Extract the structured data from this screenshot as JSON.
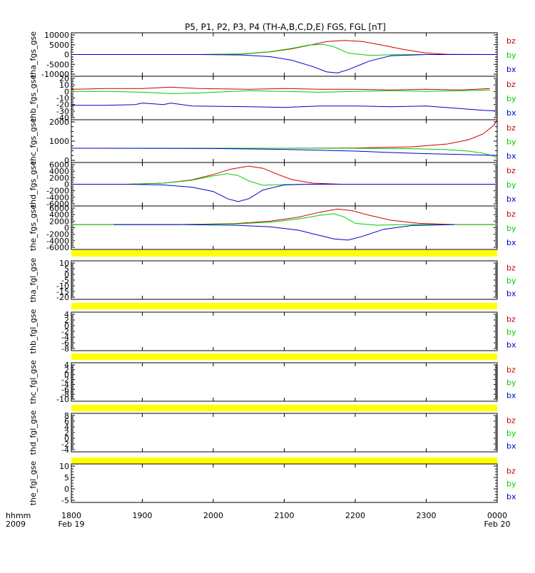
{
  "title": "P5, P1, P2, P3, P4 (TH-A,B,C,D,E) FGS, FGL [nT]",
  "time_axis": {
    "label_top": "hhmm",
    "label_bottom": "2009",
    "ticks": [
      "1800",
      "1900",
      "2000",
      "2100",
      "2200",
      "2300",
      "0000"
    ],
    "dates": [
      {
        "at": "1800",
        "text": "Feb 19"
      },
      {
        "at": "0000",
        "text": "Feb 20"
      }
    ],
    "range_hours": [
      18,
      24
    ]
  },
  "components": [
    {
      "name": "bz",
      "color": "#cc0000"
    },
    {
      "name": "by",
      "color": "#00cc00"
    },
    {
      "name": "bx",
      "color": "#0000cc"
    }
  ],
  "fill_color": "#ffff00",
  "chart_data": [
    {
      "type": "line",
      "ylabel": "tha_fgs_gse",
      "ylim": [
        -10000,
        10000
      ],
      "yticks": [
        "10000",
        "5000",
        "0",
        "-5000",
        "-10000"
      ],
      "series": [
        {
          "name": "bz",
          "x": [
            18.0,
            19.8,
            20.4,
            20.8,
            21.1,
            21.4,
            21.6,
            21.85,
            22.1,
            22.4,
            22.7,
            23.0,
            23.3,
            24.0
          ],
          "y": [
            0,
            0,
            200,
            1200,
            2600,
            4600,
            6000,
            6500,
            6000,
            4200,
            2200,
            700,
            100,
            0
          ]
        },
        {
          "name": "by",
          "x": [
            18.0,
            19.8,
            20.4,
            20.8,
            21.1,
            21.35,
            21.55,
            21.7,
            21.9,
            22.2,
            22.5,
            23.0,
            24.0
          ],
          "y": [
            0,
            0,
            300,
            1300,
            2800,
            4400,
            4700,
            3600,
            700,
            -400,
            -100,
            0,
            0
          ]
        },
        {
          "name": "bx",
          "x": [
            18.0,
            19.8,
            20.4,
            20.8,
            21.1,
            21.4,
            21.6,
            21.75,
            21.9,
            22.2,
            22.5,
            23.0,
            24.0
          ],
          "y": [
            0,
            0,
            -200,
            -1000,
            -2600,
            -5500,
            -8000,
            -8500,
            -7000,
            -3000,
            -600,
            0,
            0
          ]
        }
      ]
    },
    {
      "type": "line",
      "ylabel": "thb_fgs_gse",
      "ylim": [
        -40,
        20
      ],
      "yticks": [
        "20",
        "10",
        "0",
        "-10",
        "-20",
        "-30",
        "-40"
      ],
      "series": [
        {
          "name": "bz",
          "x": [
            18.0,
            18.5,
            19.0,
            19.4,
            19.8,
            20.5,
            21.0,
            21.5,
            22.0,
            22.5,
            23.0,
            23.5,
            23.9
          ],
          "y": [
            2,
            3,
            3,
            5,
            3,
            2,
            3,
            2,
            2,
            1,
            2,
            1,
            3
          ]
        },
        {
          "name": "by",
          "x": [
            18.0,
            18.5,
            19.0,
            19.4,
            19.8,
            20.5,
            21.0,
            21.5,
            22.0,
            22.5,
            23.0,
            23.5,
            23.9
          ],
          "y": [
            -1,
            -1,
            -2,
            -4,
            -3,
            0,
            -1,
            -2,
            -1,
            0,
            -1,
            0,
            1
          ]
        },
        {
          "name": "bx",
          "x": [
            18.0,
            18.5,
            18.9,
            19.0,
            19.3,
            19.4,
            19.7,
            20.5,
            21.0,
            21.5,
            22.0,
            22.5,
            23.0,
            23.4,
            23.8,
            24.0
          ],
          "y": [
            -20,
            -20,
            -19,
            -17,
            -19,
            -17,
            -21,
            -22,
            -23,
            -21,
            -21,
            -22,
            -21,
            -24,
            -27,
            -28
          ]
        }
      ]
    },
    {
      "type": "line",
      "ylabel": "thc_fgs_gse",
      "ylim": [
        -1000,
        2000
      ],
      "yticks": [
        "2000",
        "1000",
        "0"
      ],
      "series": [
        {
          "name": "bz",
          "x": [
            18.0,
            21.0,
            22.0,
            22.8,
            23.3,
            23.6,
            23.8,
            23.95,
            24.0
          ],
          "y": [
            0,
            0,
            20,
            100,
            300,
            600,
            1000,
            1600,
            2000
          ]
        },
        {
          "name": "by",
          "x": [
            18.0,
            21.0,
            22.0,
            22.8,
            23.3,
            23.6,
            23.8,
            23.95,
            24.0
          ],
          "y": [
            0,
            0,
            0,
            -30,
            -100,
            -200,
            -350,
            -550,
            -700
          ]
        },
        {
          "name": "bx",
          "x": [
            18.0,
            20.0,
            21.0,
            22.0,
            22.5,
            23.0,
            23.5,
            23.8,
            24.0
          ],
          "y": [
            0,
            -20,
            -80,
            -200,
            -300,
            -380,
            -440,
            -480,
            -500
          ]
        }
      ]
    },
    {
      "type": "line",
      "ylabel": "thd_fgs_gse",
      "ylim": [
        -6000,
        6000
      ],
      "yticks": [
        "6000",
        "4000",
        "2000",
        "0",
        "-2000",
        "-4000",
        "-6000"
      ],
      "series": [
        {
          "name": "bz",
          "x": [
            18.0,
            18.8,
            19.3,
            19.7,
            20.0,
            20.25,
            20.5,
            20.7,
            20.9,
            21.1,
            21.4,
            21.8,
            22.2,
            24.0
          ],
          "y": [
            0,
            0,
            300,
            1200,
            2700,
            4200,
            5000,
            4400,
            2800,
            1300,
            300,
            0,
            0,
            0
          ]
        },
        {
          "name": "by",
          "x": [
            18.0,
            18.8,
            19.3,
            19.7,
            20.0,
            20.2,
            20.35,
            20.5,
            20.7,
            21.0,
            21.3,
            24.0
          ],
          "y": [
            0,
            0,
            300,
            1100,
            2300,
            2900,
            2400,
            900,
            -300,
            -100,
            0,
            0
          ]
        },
        {
          "name": "bx",
          "x": [
            18.0,
            18.8,
            19.3,
            19.7,
            20.0,
            20.2,
            20.35,
            20.5,
            20.7,
            21.0,
            21.3,
            24.0
          ],
          "y": [
            0,
            0,
            -200,
            -800,
            -2000,
            -4000,
            -4800,
            -4000,
            -1600,
            -200,
            0,
            0
          ]
        }
      ]
    },
    {
      "type": "line",
      "ylabel": "the_fgs_gse",
      "ylim": [
        -8000,
        6000
      ],
      "yticks": [
        "6000",
        "4000",
        "2000",
        "0",
        "-2000",
        "-4000",
        "-6000"
      ],
      "series": [
        {
          "name": "bz",
          "x": [
            18.0,
            19.5,
            20.3,
            20.8,
            21.2,
            21.5,
            21.75,
            21.95,
            22.2,
            22.5,
            22.9,
            23.4,
            24.0
          ],
          "y": [
            0,
            0,
            300,
            1100,
            2400,
            4000,
            5000,
            4500,
            3000,
            1400,
            400,
            0,
            0
          ]
        },
        {
          "name": "by",
          "x": [
            18.0,
            19.5,
            20.3,
            20.8,
            21.2,
            21.5,
            21.7,
            21.85,
            22.0,
            22.3,
            22.7,
            23.4,
            24.0
          ],
          "y": [
            0,
            0,
            200,
            800,
            1800,
            3000,
            3500,
            2400,
            400,
            -200,
            0,
            0,
            0
          ]
        },
        {
          "name": "bx",
          "x": [
            18.6,
            19.5,
            20.3,
            20.8,
            21.2,
            21.5,
            21.7,
            21.9,
            22.1,
            22.4,
            22.8,
            23.4
          ],
          "y": [
            0,
            0,
            -200,
            -700,
            -1800,
            -3500,
            -4600,
            -5000,
            -3800,
            -1500,
            -300,
            0
          ]
        }
      ]
    },
    {
      "type": "line",
      "ylabel": "tha_fgl_gse",
      "ylim": [
        -20,
        10
      ],
      "yticks": [
        "10",
        "5",
        "0",
        "-5",
        "-10",
        "-15",
        "-20"
      ],
      "series": []
    },
    {
      "type": "line",
      "ylabel": "thb_fgl_gse",
      "ylim": [
        -8,
        4
      ],
      "yticks": [
        "4",
        "2",
        "0",
        "-2",
        "-4",
        "-6",
        "-8"
      ],
      "series": []
    },
    {
      "type": "line",
      "ylabel": "thc_fgl_gse",
      "ylim": [
        -10,
        4
      ],
      "yticks": [
        "4",
        "2",
        "0",
        "-2",
        "-4",
        "-6",
        "-8",
        "-10"
      ],
      "series": []
    },
    {
      "type": "line",
      "ylabel": "thd_fgl_gse",
      "ylim": [
        -4,
        8
      ],
      "yticks": [
        "8",
        "6",
        "4",
        "2",
        "0",
        "-2",
        "-4"
      ],
      "series": []
    },
    {
      "type": "line",
      "ylabel": "the_fgl_gse",
      "ylim": [
        -5,
        10
      ],
      "yticks": [
        "10",
        "5",
        "0",
        "-5"
      ],
      "series": []
    }
  ]
}
